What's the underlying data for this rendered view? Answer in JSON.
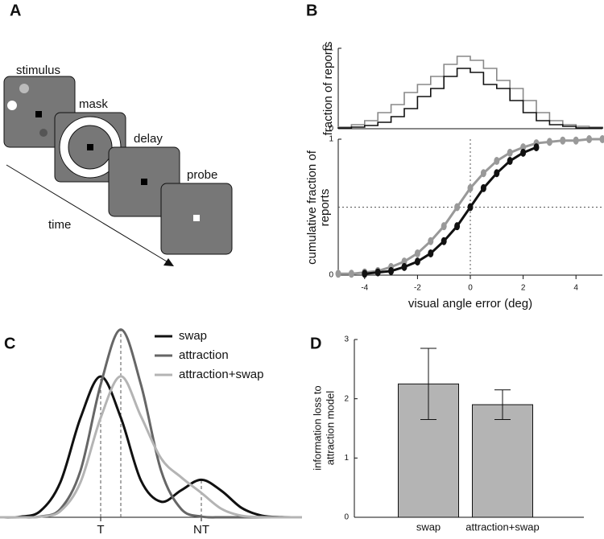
{
  "diagram": {
    "panel_label": "A",
    "screens": [
      "stimulus",
      "mask",
      "delay",
      "probe"
    ],
    "time_label": "time"
  },
  "chart_data": [
    {
      "type": "histogram",
      "panel_label": "B",
      "ylabel": "fraction of reports",
      "bins": [
        -5,
        -4.5,
        -4,
        -3.5,
        -3,
        -2.5,
        -2,
        -1.5,
        -1,
        -0.5,
        0,
        0.5,
        1,
        1.5,
        2,
        2.5,
        3,
        3.5,
        4,
        4.5,
        5
      ],
      "series": [
        {
          "name": "attraction+swap",
          "color": "#888888",
          "values": [
            0.002,
            0.005,
            0.01,
            0.02,
            0.03,
            0.045,
            0.055,
            0.065,
            0.08,
            0.09,
            0.085,
            0.075,
            0.06,
            0.05,
            0.035,
            0.02,
            0.01,
            0.005,
            0.003,
            0.002
          ]
        },
        {
          "name": "swap",
          "color": "#111111",
          "values": [
            0.001,
            0.002,
            0.004,
            0.008,
            0.015,
            0.025,
            0.04,
            0.05,
            0.065,
            0.075,
            0.07,
            0.055,
            0.05,
            0.035,
            0.02,
            0.01,
            0.005,
            0.003,
            0.001,
            0.001
          ]
        }
      ],
      "xlim": [
        -5,
        5
      ],
      "ylim": [
        0,
        0.1
      ],
      "yticks": [
        0,
        0.1
      ]
    },
    {
      "type": "line",
      "xlabel": "visual angle error (deg)",
      "ylabel": [
        "cumulative fraction of",
        "reports"
      ],
      "markers": true,
      "reference_lines": {
        "x": 0,
        "y": 0.5
      },
      "series": [
        {
          "name": "attraction+swap",
          "color": "#999999",
          "x": [
            -5,
            -4.5,
            -4,
            -3.5,
            -3,
            -2.5,
            -2,
            -1.5,
            -1,
            -0.5,
            0,
            0.5,
            1,
            1.5,
            2,
            2.5,
            3,
            3.5,
            4,
            4.5,
            5
          ],
          "values": [
            0.01,
            0.01,
            0.02,
            0.03,
            0.06,
            0.1,
            0.16,
            0.25,
            0.36,
            0.5,
            0.64,
            0.75,
            0.84,
            0.9,
            0.94,
            0.97,
            0.98,
            0.99,
            0.99,
            1,
            1
          ]
        },
        {
          "name": "swap",
          "color": "#111111",
          "x": [
            -4,
            -3.5,
            -3,
            -2.5,
            -2,
            -1.5,
            -1,
            -0.5,
            0,
            0.5,
            1,
            1.5,
            2,
            2.5
          ],
          "values": [
            0.01,
            0.02,
            0.03,
            0.06,
            0.1,
            0.16,
            0.25,
            0.36,
            0.5,
            0.64,
            0.75,
            0.84,
            0.9,
            0.94
          ]
        }
      ],
      "xlim": [
        -5,
        5
      ],
      "ylim": [
        0,
        1
      ],
      "xticks": [
        -4,
        -2,
        0,
        2,
        4
      ],
      "yticks": [
        0,
        1
      ]
    },
    {
      "type": "line",
      "panel_label": "C",
      "smooth": true,
      "peak_lines": [
        0,
        1,
        5
      ],
      "x": [
        -5,
        -4,
        -3,
        -2,
        -1,
        0,
        1,
        2,
        3,
        4,
        5,
        6,
        7,
        8,
        9,
        10
      ],
      "series": [
        {
          "name": "swap",
          "color": "#111111",
          "values": [
            0,
            0.003,
            0.033,
            0.187,
            0.53,
            0.75,
            0.531,
            0.196,
            0.083,
            0.144,
            0.2,
            0.141,
            0.05,
            0.009,
            0.001,
            0
          ]
        },
        {
          "name": "attraction",
          "color": "#666666",
          "values": [
            0,
            0,
            0.004,
            0.044,
            0.249,
            0.707,
            1,
            0.707,
            0.249,
            0.044,
            0.004,
            0,
            0,
            0,
            0,
            0
          ]
        },
        {
          "name": "attraction+swap",
          "color": "#b4b4b4",
          "values": [
            0,
            0,
            0.003,
            0.033,
            0.187,
            0.53,
            0.751,
            0.538,
            0.314,
            0.213,
            0.13,
            0.045,
            0.008,
            0.001,
            0,
            0
          ]
        }
      ],
      "xlim": [
        -5,
        10
      ],
      "ylim": [
        0,
        1.02
      ],
      "xticks": [
        {
          "value": 0,
          "label": "T"
        },
        {
          "value": 5,
          "label": "NT"
        }
      ]
    },
    {
      "type": "bar",
      "panel_label": "D",
      "ylabel": [
        "information loss to",
        "attraction model"
      ],
      "categories": [
        "swap",
        "attraction+swap"
      ],
      "values": [
        2.25,
        1.9
      ],
      "errors": [
        0.6,
        0.25
      ],
      "color": "#b4b4b4",
      "ylim": [
        0,
        3
      ],
      "yticks": [
        0,
        1,
        2,
        3
      ]
    }
  ]
}
